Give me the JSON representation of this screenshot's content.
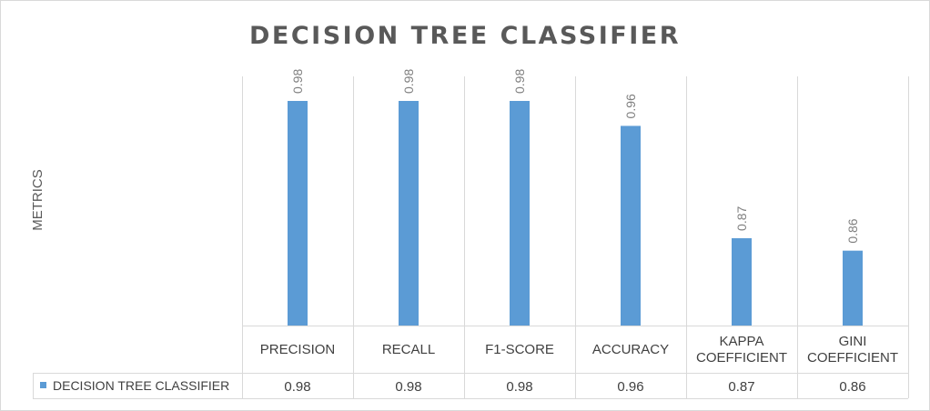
{
  "chart_data": {
    "type": "bar",
    "title": "DECISION TREE CLASSIFIER",
    "xlabel": "",
    "ylabel": "METRICS",
    "categories": [
      [
        "PRECISION"
      ],
      [
        "RECALL"
      ],
      [
        "F1-SCORE"
      ],
      [
        "ACCURACY"
      ],
      [
        "KAPPA",
        "COEFFICIENT"
      ],
      [
        "GINI",
        "COEFFICIENT"
      ]
    ],
    "series": [
      {
        "name": "DECISION TREE CLASSIFIER",
        "values": [
          0.98,
          0.98,
          0.98,
          0.96,
          0.87,
          0.86
        ],
        "labels": [
          "0.98",
          "0.98",
          "0.98",
          "0.96",
          "0.87",
          "0.86"
        ],
        "color": "#5b9bd5"
      }
    ],
    "ylim": [
      0.8,
      0.98
    ],
    "grid": "vertical category separators",
    "legend": "data-table"
  }
}
